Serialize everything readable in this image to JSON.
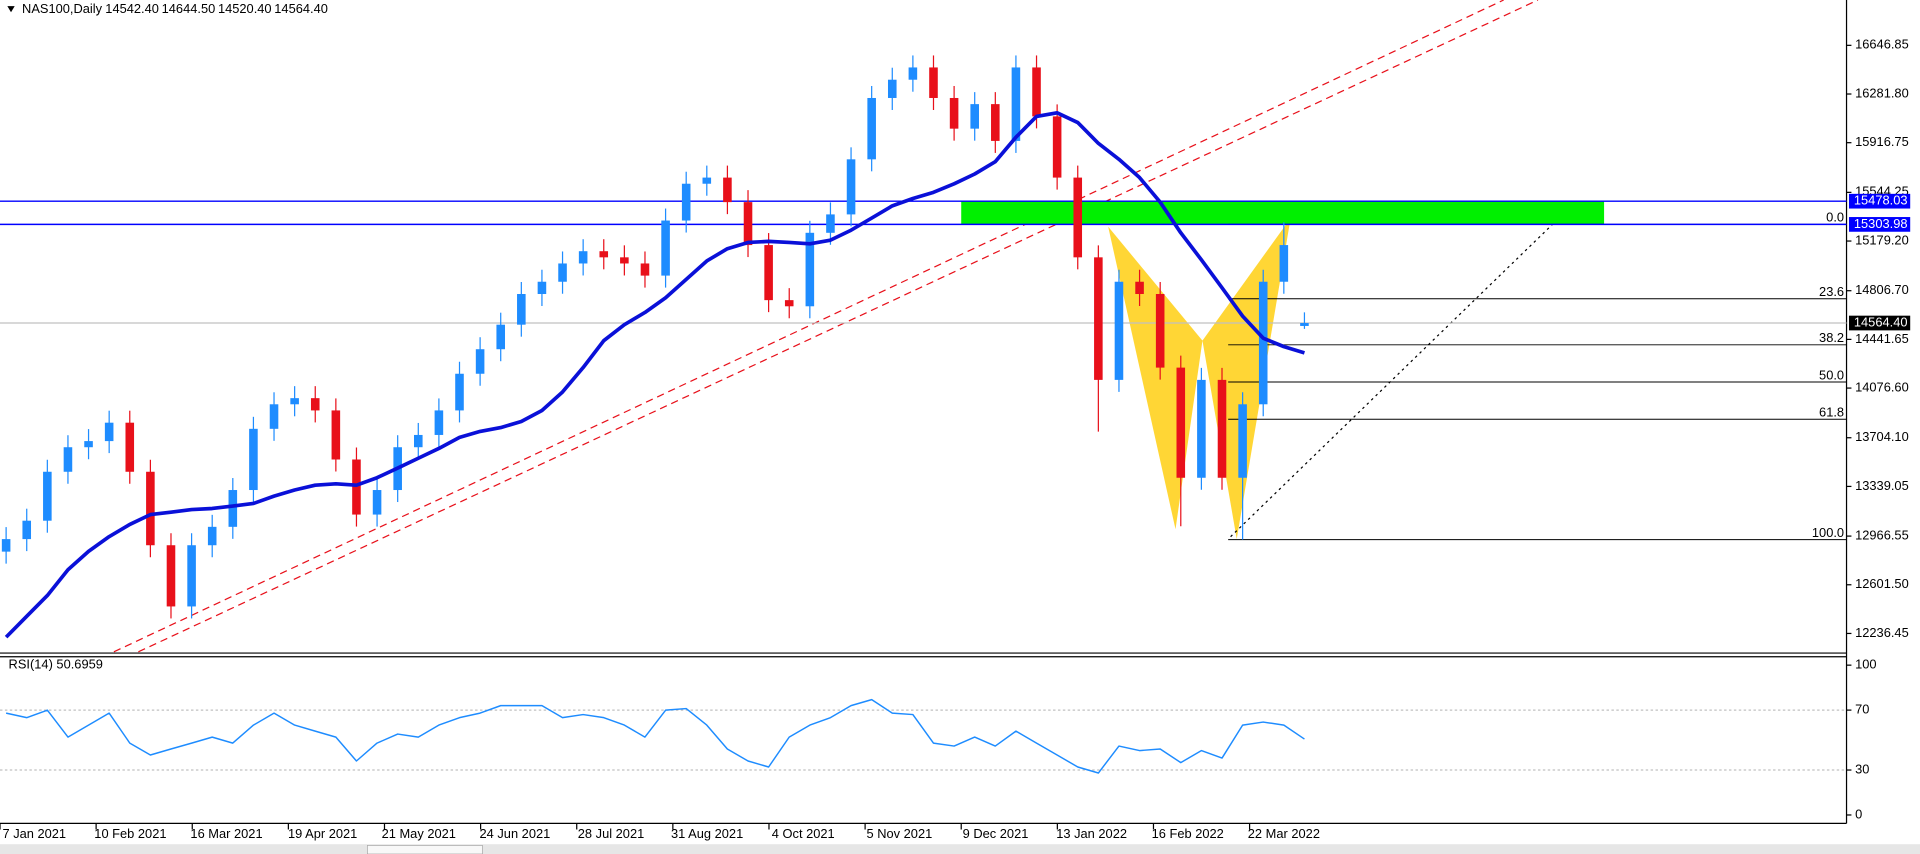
{
  "chart_data": {
    "type": "candlestick",
    "title": "NAS100,Daily",
    "ohlc_labels": [
      "14542.40",
      "14644.50",
      "14520.40",
      "14564.40"
    ],
    "x_labels": [
      "7 Jan 2021",
      "10 Feb 2021",
      "16 Mar 2021",
      "19 Apr 2021",
      "21 May 2021",
      "24 Jun 2021",
      "28 Jul 2021",
      "31 Aug 2021",
      "4 Oct 2021",
      "5 Nov 2021",
      "9 Dec 2021",
      "13 Jan 2022",
      "16 Feb 2022",
      "22 Mar 2022"
    ],
    "up_color": "#1e8cff",
    "down_color": "#e8101a",
    "candles": {
      "open": [
        12850,
        12944,
        13082,
        13449,
        13633,
        13679,
        13817,
        13449,
        12898,
        12439,
        12898,
        13036,
        13312,
        13771,
        13955,
        14001,
        13909,
        13541,
        13128,
        13312,
        13633,
        13725,
        13909,
        14184,
        14368,
        14552,
        14782,
        14874,
        15011,
        15103,
        15057,
        15011,
        14920,
        15333,
        15609,
        15655,
        15471,
        15149,
        14736,
        14690,
        15241,
        15379,
        15792,
        16252,
        16389,
        16481,
        16252,
        16022,
        16206,
        15930,
        16481,
        16114,
        15655,
        15057,
        14138,
        14874,
        14782,
        14230,
        13404,
        14138,
        13404,
        13955,
        14874,
        14542.4
      ],
      "high": [
        13034,
        13172,
        13539,
        13723,
        13769,
        13907,
        13907,
        13539,
        12988,
        12988,
        13126,
        13402,
        13861,
        14045,
        14091,
        14091,
        13999,
        13631,
        13402,
        13723,
        13815,
        13999,
        14274,
        14458,
        14642,
        14872,
        14964,
        15101,
        15193,
        15193,
        15147,
        15101,
        15423,
        15699,
        15745,
        15745,
        15561,
        15239,
        14826,
        15331,
        15469,
        15882,
        16342,
        16479,
        16571,
        16571,
        16342,
        16296,
        16296,
        16571,
        16571,
        16204,
        15745,
        15147,
        14964,
        14964,
        14872,
        14320,
        14228,
        14228,
        14045,
        14964,
        15320,
        14644.5
      ],
      "low": [
        12760,
        12854,
        12992,
        13359,
        13543,
        13589,
        13359,
        12808,
        12349,
        12349,
        12808,
        12946,
        13222,
        13681,
        13865,
        13819,
        13451,
        13038,
        13038,
        13222,
        13543,
        13635,
        13819,
        14094,
        14278,
        14462,
        14692,
        14784,
        14921,
        14967,
        14921,
        14830,
        14830,
        15243,
        15519,
        15381,
        15059,
        14646,
        14600,
        14600,
        15151,
        15289,
        15702,
        16162,
        16299,
        16162,
        15932,
        15932,
        15840,
        15840,
        16024,
        15565,
        14967,
        13750,
        14048,
        14692,
        14140,
        13040,
        13314,
        13314,
        12940,
        13865,
        14784,
        14520.4
      ],
      "close": [
        12944,
        13082,
        13449,
        13633,
        13679,
        13817,
        13449,
        12898,
        12439,
        12898,
        13036,
        13312,
        13771,
        13955,
        14001,
        13909,
        13541,
        13128,
        13312,
        13633,
        13725,
        13909,
        14184,
        14368,
        14552,
        14782,
        14874,
        15011,
        15103,
        15057,
        15011,
        14920,
        15333,
        15609,
        15655,
        15471,
        15149,
        14736,
        14690,
        15241,
        15379,
        15792,
        16252,
        16389,
        16481,
        16252,
        16022,
        16206,
        15930,
        16481,
        16114,
        15655,
        15057,
        14138,
        14874,
        14782,
        14230,
        13404,
        14138,
        13404,
        13955,
        14874,
        15149,
        14564.4
      ]
    },
    "moving_average": {
      "color": "#0a10d8",
      "values": [
        12209,
        12365,
        12521,
        12714,
        12852,
        12962,
        13054,
        13128,
        13146,
        13165,
        13174,
        13192,
        13211,
        13266,
        13312,
        13348,
        13358,
        13348,
        13404,
        13477,
        13550,
        13624,
        13707,
        13752,
        13780,
        13826,
        13909,
        14047,
        14230,
        14432,
        14552,
        14644,
        14754,
        14892,
        15030,
        15122,
        15168,
        15177,
        15168,
        15158,
        15186,
        15260,
        15351,
        15443,
        15498,
        15544,
        15609,
        15682,
        15774,
        15958,
        16114,
        16141,
        16068,
        15912,
        15792,
        15655,
        15471,
        15241,
        15039,
        14828,
        14616,
        14451,
        14387,
        14341
      ]
    },
    "ylim": [
      12098.6,
      16986.8
    ],
    "yticks": [
      16646.85,
      {
        "value": 16281.8,
        "label": "16281.80"
      },
      15916.75,
      15544.25,
      {
        "value": 15179.2,
        "label": "15179.20"
      },
      {
        "value": 14806.7,
        "label": "14806.70"
      },
      14441.65,
      {
        "value": 14076.6,
        "label": "14076.60"
      },
      {
        "value": 13704.1,
        "label": "13704.10"
      },
      13339.05,
      12966.55,
      {
        "value": 12601.5,
        "label": "12601.50"
      },
      12236.45
    ],
    "levels": [
      {
        "value": 15478.03,
        "color": "#0000ff"
      },
      {
        "value": 15303.98,
        "color": "#0000ff"
      }
    ],
    "zone_color": "#00f000",
    "current_price": {
      "value": 14564.4,
      "label": "14564.40"
    },
    "fib": {
      "high": 15303.98,
      "low": 12940,
      "levels": [
        {
          "value": 0,
          "label": "0.0"
        },
        23.6,
        38.2,
        {
          "value": 50,
          "label": "50.0"
        },
        61.8,
        {
          "value": 100,
          "label": "100.0"
        }
      ]
    },
    "rsi": {
      "label": "RSI(14) 50.6959",
      "color": "#1e8cff",
      "values": [
        68,
        65,
        70,
        52,
        60,
        68,
        48,
        40,
        44,
        48,
        52,
        48,
        60,
        68,
        60,
        56,
        52,
        36,
        48,
        54,
        52,
        60,
        65,
        68,
        73,
        73,
        73,
        65,
        67,
        65,
        60,
        52,
        70,
        71,
        60,
        44,
        36,
        32,
        52,
        60,
        65,
        73,
        77,
        68,
        67,
        48,
        46,
        52,
        46,
        56,
        48,
        40,
        32,
        28,
        46,
        43,
        44,
        35,
        43,
        38,
        60,
        62,
        60,
        50.6959
      ],
      "ylim": [
        -5.6,
        104.8
      ],
      "yticks": [
        0,
        30,
        70,
        100
      ],
      "levels": [
        30,
        70
      ]
    }
  }
}
